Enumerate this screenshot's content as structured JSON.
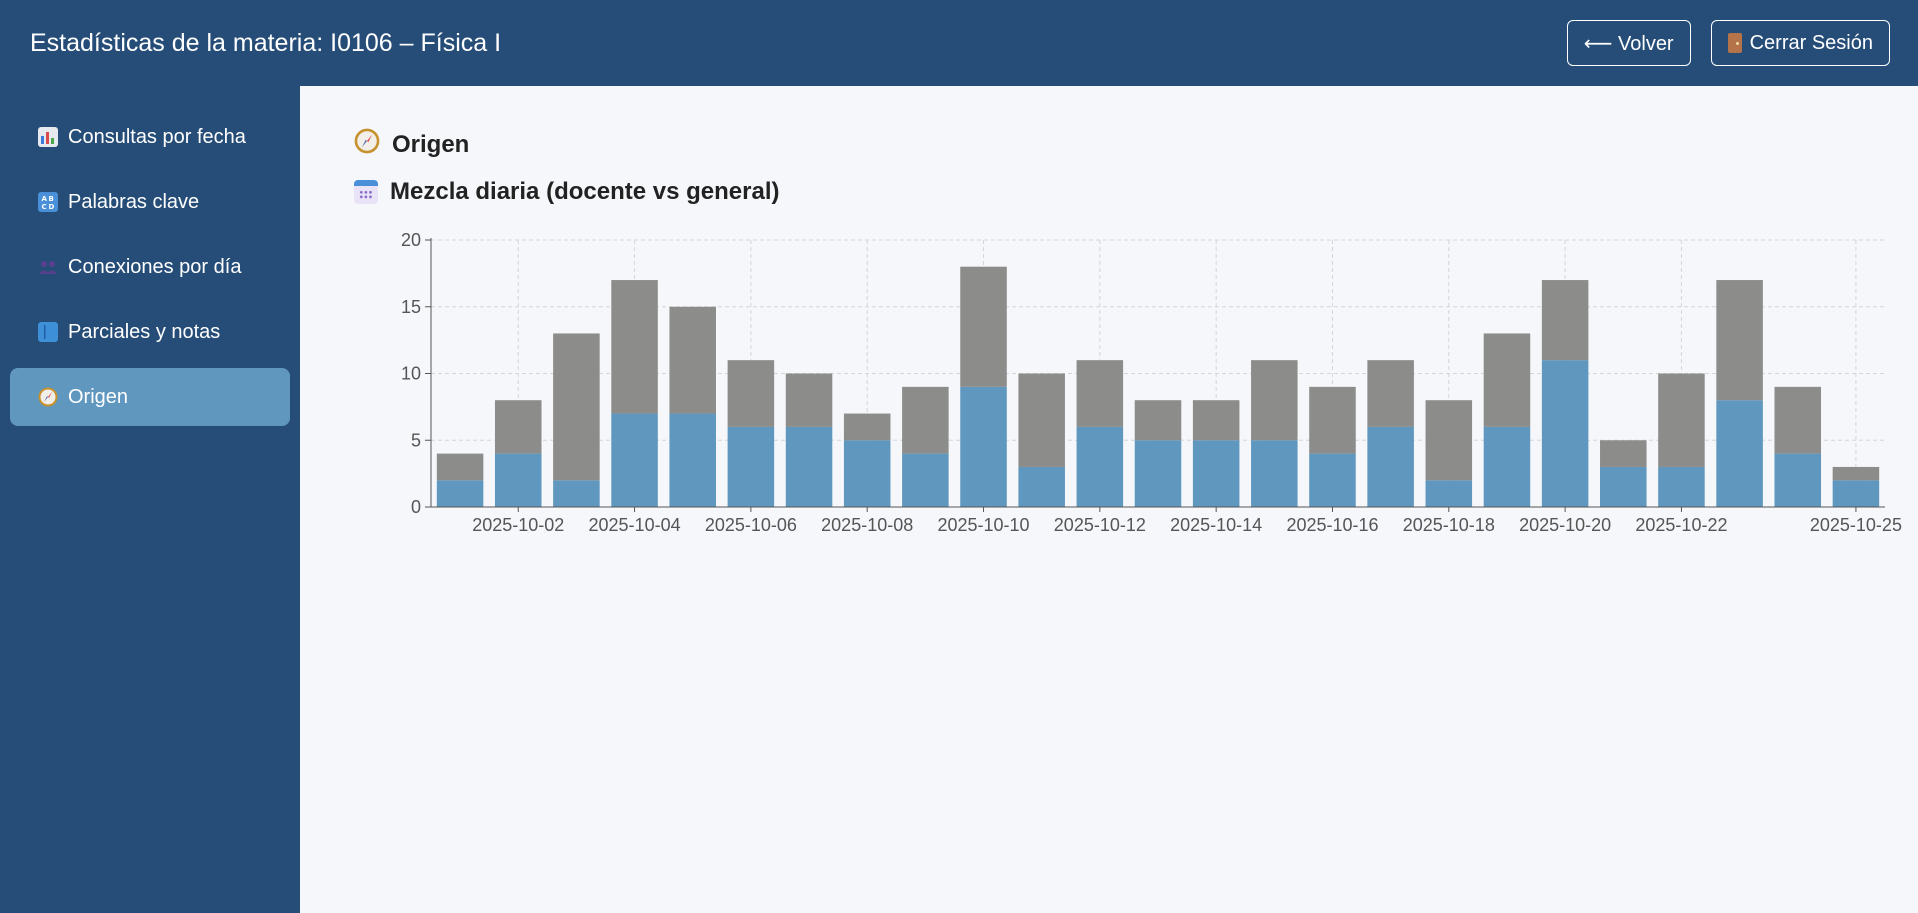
{
  "header": {
    "title": "Estadísticas de la materia: I0106 – Física I",
    "back_label": "⟵ Volver",
    "logout_label": "Cerrar Sesión"
  },
  "sidebar": {
    "items": [
      {
        "label": "Consultas por fecha",
        "icon": "bar-chart-icon"
      },
      {
        "label": "Palabras clave",
        "icon": "abcd-icon"
      },
      {
        "label": "Conexiones por día",
        "icon": "people-icon"
      },
      {
        "label": "Parciales y notas",
        "icon": "book-icon"
      },
      {
        "label": "Origen",
        "icon": "compass-icon",
        "active": true
      }
    ]
  },
  "main": {
    "section_title": "Origen",
    "chart_title": "Mezcla diaria (docente vs general)"
  },
  "colors": {
    "header_bg": "#264d78",
    "sidebar_active": "#5f97bf",
    "series_docente": "#5f97bf",
    "series_general": "#8c8c8a"
  },
  "chart_data": {
    "type": "bar",
    "stacked": true,
    "title": "Mezcla diaria (docente vs general)",
    "categories": [
      "2025-10-01",
      "2025-10-02",
      "2025-10-03",
      "2025-10-04",
      "2025-10-05",
      "2025-10-06",
      "2025-10-07",
      "2025-10-08",
      "2025-10-09",
      "2025-10-10",
      "2025-10-11",
      "2025-10-12",
      "2025-10-13",
      "2025-10-14",
      "2025-10-15",
      "2025-10-16",
      "2025-10-17",
      "2025-10-18",
      "2025-10-19",
      "2025-10-20",
      "2025-10-21",
      "2025-10-22",
      "2025-10-23",
      "2025-10-24",
      "2025-10-25"
    ],
    "x_tick_labels": [
      "2025-10-02",
      "2025-10-04",
      "2025-10-06",
      "2025-10-08",
      "2025-10-10",
      "2025-10-12",
      "2025-10-14",
      "2025-10-16",
      "2025-10-18",
      "2025-10-20",
      "2025-10-22",
      "2025-10-25"
    ],
    "series": [
      {
        "values": [
          2,
          4,
          2,
          7,
          7,
          6,
          6,
          5,
          4,
          9,
          3,
          6,
          5,
          5,
          5,
          4,
          6,
          2,
          6,
          11,
          3,
          3,
          8,
          4,
          2
        ]
      },
      {
        "values": [
          2,
          4,
          11,
          10,
          8,
          5,
          4,
          2,
          5,
          9,
          7,
          5,
          3,
          3,
          6,
          5,
          5,
          6,
          7,
          6,
          2,
          7,
          9,
          5,
          1
        ]
      }
    ],
    "ylim": [
      0,
      20
    ],
    "y_ticks": [
      0,
      5,
      10,
      15,
      20
    ],
    "grid": true,
    "legend": "none"
  }
}
